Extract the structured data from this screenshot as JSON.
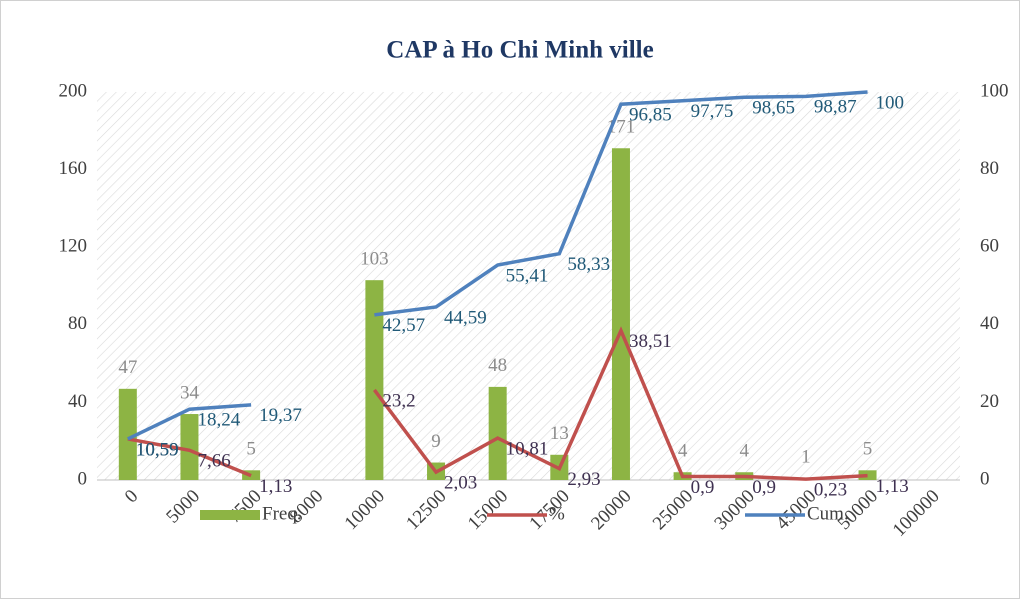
{
  "chart_data": {
    "type": "bar",
    "title": "CAP à Ho Chi Minh ville",
    "categories": [
      "0",
      "5000",
      "7500",
      "8000",
      "10000",
      "12500",
      "15000",
      "17500",
      "20000",
      "25000",
      "30000",
      "45000",
      "50000",
      "100000"
    ],
    "series": [
      {
        "name": "Freq.",
        "type": "bar",
        "color": "#8db444",
        "axis": "y",
        "values": [
          47,
          34,
          5,
          null,
          103,
          9,
          48,
          13,
          171,
          4,
          4,
          1,
          5,
          null
        ]
      },
      {
        "name": "%",
        "type": "line",
        "color": "#c0504d",
        "axis": "y2",
        "values": [
          10.59,
          7.66,
          1.13,
          null,
          23.2,
          2.03,
          10.81,
          2.93,
          38.51,
          0.9,
          0.9,
          0.23,
          1.13,
          null
        ],
        "value_labels": [
          "10,59",
          "7,66",
          "1,13",
          null,
          "23,2",
          "2,03",
          "10,81",
          "2,93",
          "38,51",
          "0,9",
          "0,9",
          "0,23",
          "1,13",
          null
        ]
      },
      {
        "name": "Cum.",
        "type": "line",
        "color": "#4f81bd",
        "axis": "y2",
        "values": [
          10.59,
          18.24,
          19.37,
          null,
          42.57,
          44.59,
          55.41,
          58.33,
          96.85,
          97.75,
          98.65,
          98.87,
          100,
          null
        ],
        "value_labels": [
          "10,59",
          "18,24",
          "19,37",
          null,
          "42,57",
          "44,59",
          "55,41",
          "58,33",
          "96,85",
          "97,75",
          "98,65",
          "98,87",
          "100",
          null
        ]
      }
    ],
    "ylim": [
      0,
      200
    ],
    "yticks": [
      0,
      40,
      80,
      120,
      160,
      200
    ],
    "y2lim": [
      0,
      100
    ],
    "y2ticks": [
      0,
      20,
      40,
      60,
      80,
      100
    ],
    "legend": "bottom"
  }
}
